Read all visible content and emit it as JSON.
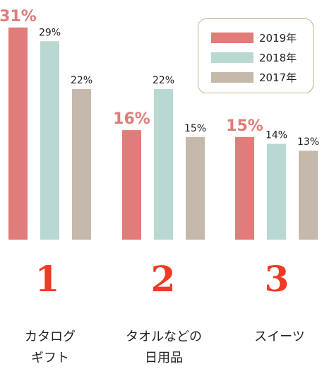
{
  "chart_data": {
    "type": "bar",
    "categories": [
      "カタログ\nギフト",
      "タオルなどの\n日用品",
      "スイーツ"
    ],
    "ranks": [
      "1",
      "2",
      "3"
    ],
    "series": [
      {
        "name": "2019年",
        "color": "#e07c79",
        "values": [
          31,
          16,
          15
        ],
        "labels": [
          "31%",
          "16%",
          "15%"
        ]
      },
      {
        "name": "2018年",
        "color": "#b9d8d2",
        "values": [
          29,
          22,
          14
        ],
        "labels": [
          "29%",
          "22%",
          "14%"
        ]
      },
      {
        "name": "2017年",
        "color": "#c4b9aa",
        "values": [
          22,
          15,
          13
        ],
        "labels": [
          "22%",
          "15%",
          "13%"
        ]
      }
    ],
    "legend_position": "top-right",
    "highlight_color": "#e07c79"
  }
}
